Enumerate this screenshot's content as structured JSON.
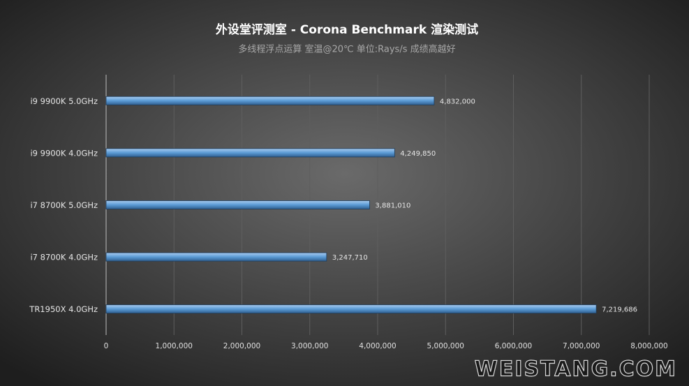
{
  "chart_data": {
    "type": "bar",
    "orientation": "horizontal",
    "title": "外设堂评测室 - Corona Benchmark 渲染测试",
    "subtitle": "多线程浮点运算  室温@20℃   单位:Rays/s    成绩高越好",
    "categories": [
      "i9 9900K 5.0GHz",
      "i9 9900K 4.0GHz",
      "i7 8700K 5.0GHz",
      "i7 8700K 4.0GHz",
      "TR1950X 4.0GHz"
    ],
    "values": [
      4832000,
      4249850,
      3881010,
      3247710,
      7219686
    ],
    "value_labels": [
      "4,832,000",
      "4,249,850",
      "3,881,010",
      "3,247,710",
      "7,219,686"
    ],
    "color": "#5b9bd5",
    "xlim": [
      0,
      8000000
    ],
    "xticks": [
      0,
      {
        "value": 1000000,
        "label": "1,000,000"
      },
      {
        "value": 2000000,
        "label": "2,000,000"
      },
      {
        "value": 3000000,
        "label": "3,000,000"
      },
      {
        "value": 4000000,
        "label": "4,000,000"
      },
      {
        "value": 5000000,
        "label": "5,000,000"
      },
      {
        "value": 6000000,
        "label": "6,000,000"
      },
      {
        "value": 7000000,
        "label": "7,000,000"
      },
      {
        "value": 8000000,
        "label": "8,000,000"
      }
    ],
    "grid": true,
    "watermark": "WEISTANG.COM"
  }
}
